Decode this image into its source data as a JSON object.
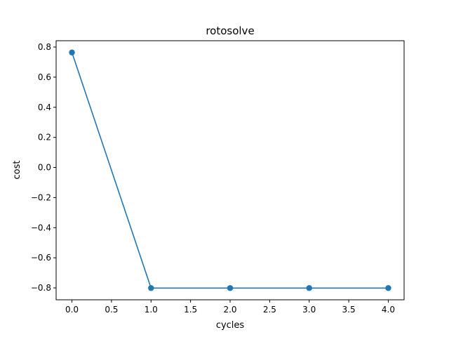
{
  "chart_data": {
    "type": "line",
    "title": "rotosolve",
    "xlabel": "cycles",
    "ylabel": "cost",
    "x": [
      0,
      1,
      2,
      3,
      4
    ],
    "series": [
      {
        "values": [
          0.764,
          -0.801,
          -0.801,
          -0.801,
          -0.801
        ],
        "color": "#1f77b4",
        "marker": "circle"
      }
    ],
    "xlim": [
      -0.2,
      4.2
    ],
    "ylim": [
      -0.879,
      0.842
    ],
    "xticks": [
      0.0,
      0.5,
      1.0,
      1.5,
      2.0,
      2.5,
      3.0,
      3.5,
      4.0
    ],
    "xtick_labels": [
      "0.0",
      "0.5",
      "1.0",
      "1.5",
      "2.0",
      "2.5",
      "3.0",
      "3.5",
      "4.0"
    ],
    "yticks": [
      0.8,
      0.6,
      0.4,
      0.2,
      0.0,
      -0.2,
      -0.4,
      -0.6,
      -0.8
    ],
    "ytick_labels": [
      "0.8",
      "0.6",
      "0.4",
      "0.2",
      "0.0",
      "−0.2",
      "−0.4",
      "−0.6",
      "−0.8"
    ],
    "grid": false,
    "legend": "none"
  }
}
